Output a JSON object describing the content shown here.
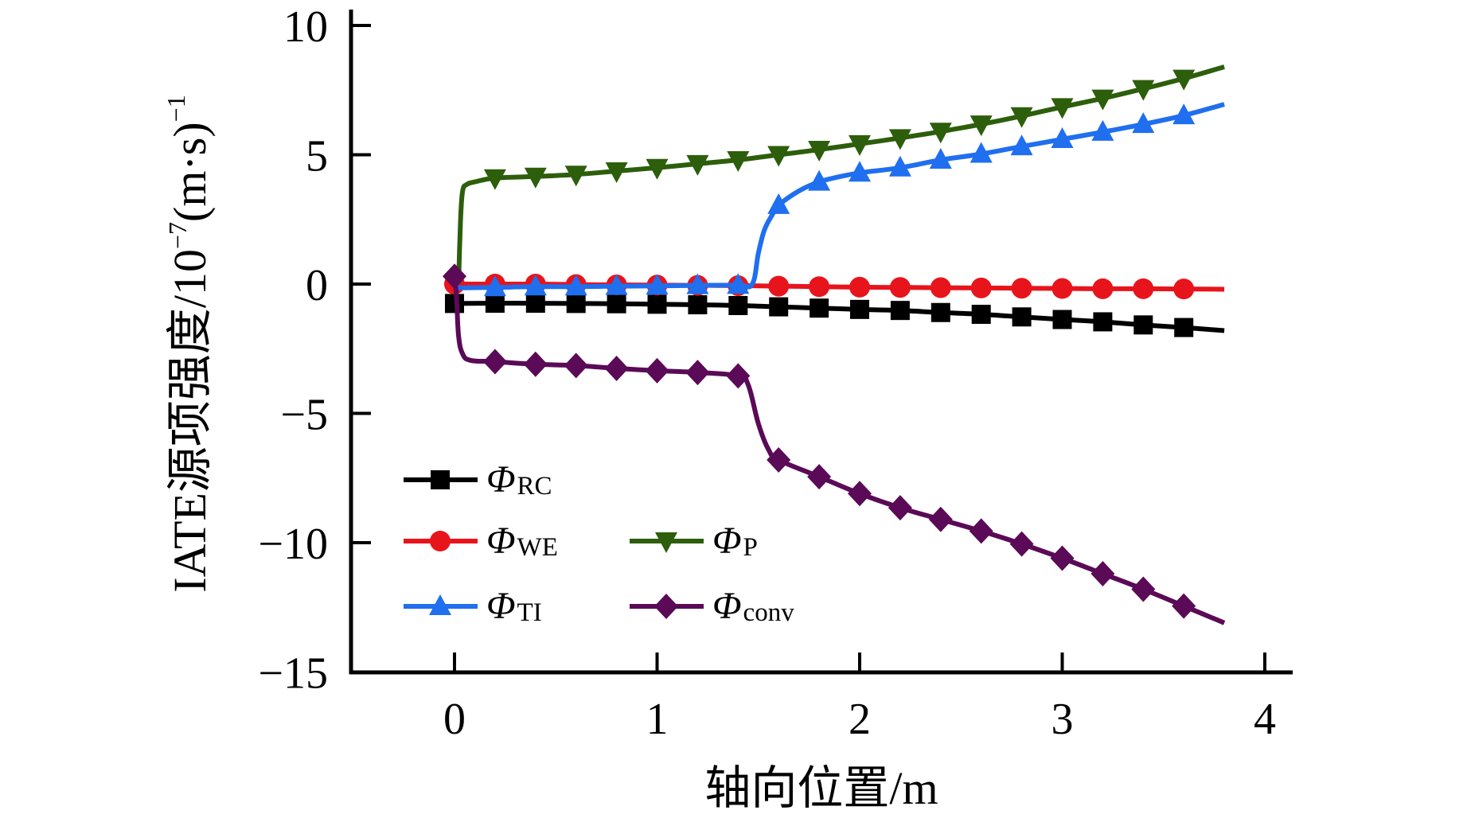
{
  "chart_data": {
    "type": "line",
    "title": "",
    "xlabel": "轴向位置/m",
    "ylabel": {
      "main": "IATE源项强度/10",
      "exp1": "−7",
      "unit": "(m·s)",
      "exp2": "−1"
    },
    "xlim": [
      -0.5,
      4.13
    ],
    "ylim": [
      -15,
      10
    ],
    "xticks": [
      0,
      1,
      2,
      3,
      4
    ],
    "xtick_labels": [
      "0",
      "1",
      "2",
      "3",
      "4"
    ],
    "yticks": [
      10,
      5,
      0,
      -5,
      -10,
      -15
    ],
    "ytick_labels": [
      "10",
      "5",
      "0",
      "−5",
      "−10",
      "−15"
    ],
    "grid": false,
    "legend_position": "bottom-left",
    "series": [
      {
        "name": "Φ_RC",
        "symbol": "Φ",
        "subscript": "RC",
        "color": "#000000",
        "marker": "square",
        "line_x": [
          0,
          0.2,
          0.4,
          0.6,
          0.8,
          1.0,
          1.2,
          1.4,
          1.6,
          1.8,
          2.0,
          2.2,
          2.4,
          2.6,
          2.8,
          3.0,
          3.2,
          3.4,
          3.6,
          3.8
        ],
        "line_y": [
          -0.75,
          -0.74,
          -0.74,
          -0.75,
          -0.76,
          -0.78,
          -0.8,
          -0.83,
          -0.88,
          -0.93,
          -0.98,
          -1.02,
          -1.1,
          -1.17,
          -1.27,
          -1.37,
          -1.46,
          -1.58,
          -1.68,
          -1.8
        ],
        "marker_x": [
          0,
          0.2,
          0.4,
          0.6,
          0.8,
          1.0,
          1.2,
          1.4,
          1.6,
          1.8,
          2.0,
          2.2,
          2.4,
          2.6,
          2.8,
          3.0,
          3.2,
          3.4,
          3.6
        ],
        "marker_y": [
          -0.75,
          -0.74,
          -0.74,
          -0.75,
          -0.76,
          -0.78,
          -0.8,
          -0.83,
          -0.88,
          -0.93,
          -0.98,
          -1.02,
          -1.1,
          -1.17,
          -1.27,
          -1.37,
          -1.46,
          -1.58,
          -1.68
        ]
      },
      {
        "name": "Φ_WE",
        "symbol": "Φ",
        "subscript": "WE",
        "color": "#e8141c",
        "marker": "circle",
        "line_x": [
          0,
          0.2,
          0.4,
          0.6,
          0.8,
          1.0,
          1.2,
          1.4,
          1.6,
          1.8,
          2.0,
          2.2,
          2.4,
          2.6,
          2.8,
          3.0,
          3.2,
          3.4,
          3.6,
          3.8
        ],
        "line_y": [
          0.0,
          0.0,
          0.0,
          -0.02,
          -0.03,
          -0.04,
          -0.05,
          -0.06,
          -0.08,
          -0.1,
          -0.12,
          -0.13,
          -0.14,
          -0.15,
          -0.16,
          -0.17,
          -0.18,
          -0.18,
          -0.19,
          -0.2
        ],
        "marker_x": [
          0,
          0.2,
          0.4,
          0.6,
          0.8,
          1.0,
          1.2,
          1.4,
          1.6,
          1.8,
          2.0,
          2.2,
          2.4,
          2.6,
          2.8,
          3.0,
          3.2,
          3.4,
          3.6
        ],
        "marker_y": [
          0.0,
          0.0,
          0.0,
          -0.02,
          -0.03,
          -0.04,
          -0.05,
          -0.06,
          -0.08,
          -0.1,
          -0.12,
          -0.13,
          -0.14,
          -0.15,
          -0.16,
          -0.17,
          -0.18,
          -0.18,
          -0.19
        ]
      },
      {
        "name": "Φ_TI",
        "symbol": "Φ",
        "subscript": "TI",
        "color": "#1f6fef",
        "marker": "triangle-up",
        "line_x": [
          0,
          0.2,
          0.4,
          0.6,
          0.8,
          1.0,
          1.2,
          1.4,
          1.47,
          1.5,
          1.53,
          1.57,
          1.6,
          1.7,
          1.8,
          1.9,
          2.0,
          2.2,
          2.4,
          2.6,
          2.8,
          3.0,
          3.2,
          3.4,
          3.6,
          3.8
        ],
        "line_y": [
          -0.15,
          -0.13,
          -0.1,
          -0.1,
          -0.08,
          -0.07,
          -0.05,
          -0.04,
          0.0,
          1.2,
          2.1,
          2.7,
          3.05,
          3.6,
          3.95,
          4.15,
          4.3,
          4.5,
          4.8,
          5.03,
          5.32,
          5.6,
          5.88,
          6.18,
          6.52,
          6.95
        ],
        "marker_x": [
          0.2,
          0.4,
          0.6,
          0.8,
          1.0,
          1.2,
          1.4,
          1.6,
          1.8,
          2.0,
          2.2,
          2.4,
          2.6,
          2.8,
          3.0,
          3.2,
          3.4,
          3.6
        ],
        "marker_y": [
          -0.13,
          -0.1,
          -0.1,
          -0.08,
          -0.07,
          -0.05,
          -0.04,
          3.05,
          3.95,
          4.3,
          4.5,
          4.8,
          5.03,
          5.32,
          5.6,
          5.88,
          6.18,
          6.52
        ]
      },
      {
        "name": "Φ_P",
        "symbol": "Φ",
        "subscript": "P",
        "color": "#2d5e0c",
        "marker": "triangle-down",
        "line_x": [
          0.02,
          0.03,
          0.04,
          0.06,
          0.1,
          0.2,
          0.4,
          0.6,
          0.8,
          1.0,
          1.2,
          1.4,
          1.6,
          1.8,
          2.0,
          2.2,
          2.4,
          2.6,
          2.8,
          3.0,
          3.2,
          3.4,
          3.6,
          3.8
        ],
        "line_y": [
          0.0,
          2.5,
          3.6,
          3.85,
          3.95,
          4.1,
          4.16,
          4.24,
          4.37,
          4.5,
          4.65,
          4.8,
          5.0,
          5.2,
          5.42,
          5.65,
          5.9,
          6.18,
          6.5,
          6.85,
          7.18,
          7.55,
          7.95,
          8.4
        ],
        "marker_x": [
          0.2,
          0.4,
          0.6,
          0.8,
          1.0,
          1.2,
          1.4,
          1.6,
          1.8,
          2.0,
          2.2,
          2.4,
          2.6,
          2.8,
          3.0,
          3.2,
          3.4,
          3.6
        ],
        "marker_y": [
          4.1,
          4.16,
          4.24,
          4.37,
          4.5,
          4.65,
          4.8,
          5.0,
          5.2,
          5.42,
          5.65,
          5.9,
          6.18,
          6.5,
          6.85,
          7.18,
          7.55,
          7.95
        ]
      },
      {
        "name": "Φ_conv",
        "symbol": "Φ",
        "subscript": "conv",
        "color": "#5a0a56",
        "marker": "diamond",
        "line_x": [
          0,
          0.01,
          0.02,
          0.04,
          0.08,
          0.2,
          0.4,
          0.6,
          0.8,
          1.0,
          1.2,
          1.4,
          1.45,
          1.5,
          1.55,
          1.6,
          1.8,
          2.0,
          2.2,
          2.4,
          2.6,
          2.8,
          3.0,
          3.2,
          3.4,
          3.6,
          3.8
        ],
        "line_y": [
          0.3,
          -0.5,
          -2.0,
          -2.7,
          -2.95,
          -3.0,
          -3.1,
          -3.15,
          -3.26,
          -3.35,
          -3.42,
          -3.55,
          -3.9,
          -5.4,
          -6.4,
          -6.8,
          -7.45,
          -8.1,
          -8.65,
          -9.1,
          -9.55,
          -10.05,
          -10.6,
          -11.2,
          -11.8,
          -12.45,
          -13.1
        ],
        "marker_x": [
          0,
          0.2,
          0.4,
          0.6,
          0.8,
          1.0,
          1.2,
          1.4,
          1.6,
          1.8,
          2.0,
          2.2,
          2.4,
          2.6,
          2.8,
          3.0,
          3.2,
          3.4,
          3.6
        ],
        "marker_y": [
          0.3,
          -3.0,
          -3.1,
          -3.15,
          -3.26,
          -3.35,
          -3.42,
          -3.55,
          -6.8,
          -7.45,
          -8.1,
          -8.65,
          -9.1,
          -9.55,
          -10.05,
          -10.6,
          -11.2,
          -11.8,
          -12.45
        ]
      }
    ]
  }
}
